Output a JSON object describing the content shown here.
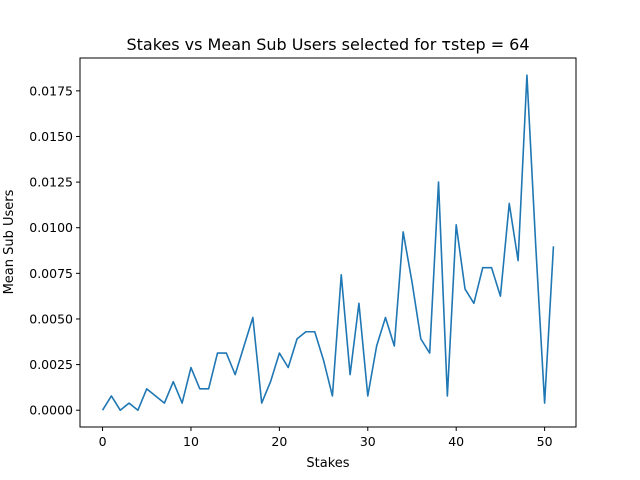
{
  "chart_data": {
    "type": "line",
    "title": "Stakes vs Mean Sub Users selected for τstep = 64",
    "xlabel": "Stakes",
    "ylabel": "Mean Sub Users",
    "xlim": [
      -2.55,
      53.55
    ],
    "ylim": [
      -0.00092,
      0.0193
    ],
    "xticks": [
      0,
      10,
      20,
      30,
      40,
      50
    ],
    "yticks": [
      0.0,
      0.0025,
      0.005,
      0.0075,
      0.01,
      0.0125,
      0.015,
      0.0175
    ],
    "ytick_labels": [
      "0.0000",
      "0.0025",
      "0.0050",
      "0.0075",
      "0.0100",
      "0.0125",
      "0.0150",
      "0.0175"
    ],
    "grid": false,
    "series": [
      {
        "color": "#1f77b4",
        "x": [
          0,
          1,
          2,
          3,
          4,
          5,
          6,
          7,
          8,
          9,
          10,
          11,
          12,
          13,
          14,
          15,
          16,
          17,
          18,
          19,
          20,
          21,
          22,
          23,
          24,
          25,
          26,
          27,
          28,
          29,
          30,
          31,
          32,
          33,
          34,
          35,
          36,
          37,
          38,
          39,
          40,
          41,
          42,
          43,
          44,
          45,
          46,
          47,
          48,
          49,
          50,
          51
        ],
        "y": [
          0.0,
          0.00078,
          0.0,
          0.00039,
          0.0,
          0.00117,
          0.00078,
          0.00039,
          0.00156,
          0.00039,
          0.00234,
          0.00117,
          0.00117,
          0.00313,
          0.00313,
          0.00195,
          0.00352,
          0.00508,
          0.00039,
          0.00156,
          0.00313,
          0.00234,
          0.00391,
          0.0043,
          0.0043,
          0.00273,
          0.00078,
          0.00742,
          0.00195,
          0.00586,
          0.00078,
          0.00352,
          0.00508,
          0.00352,
          0.00977,
          0.00703,
          0.00391,
          0.00313,
          0.0125,
          0.00078,
          0.01016,
          0.00664,
          0.00586,
          0.00781,
          0.00781,
          0.00625,
          0.01133,
          0.0082,
          0.01836,
          0.00898,
          0.00039,
          0.00898
        ]
      }
    ]
  }
}
